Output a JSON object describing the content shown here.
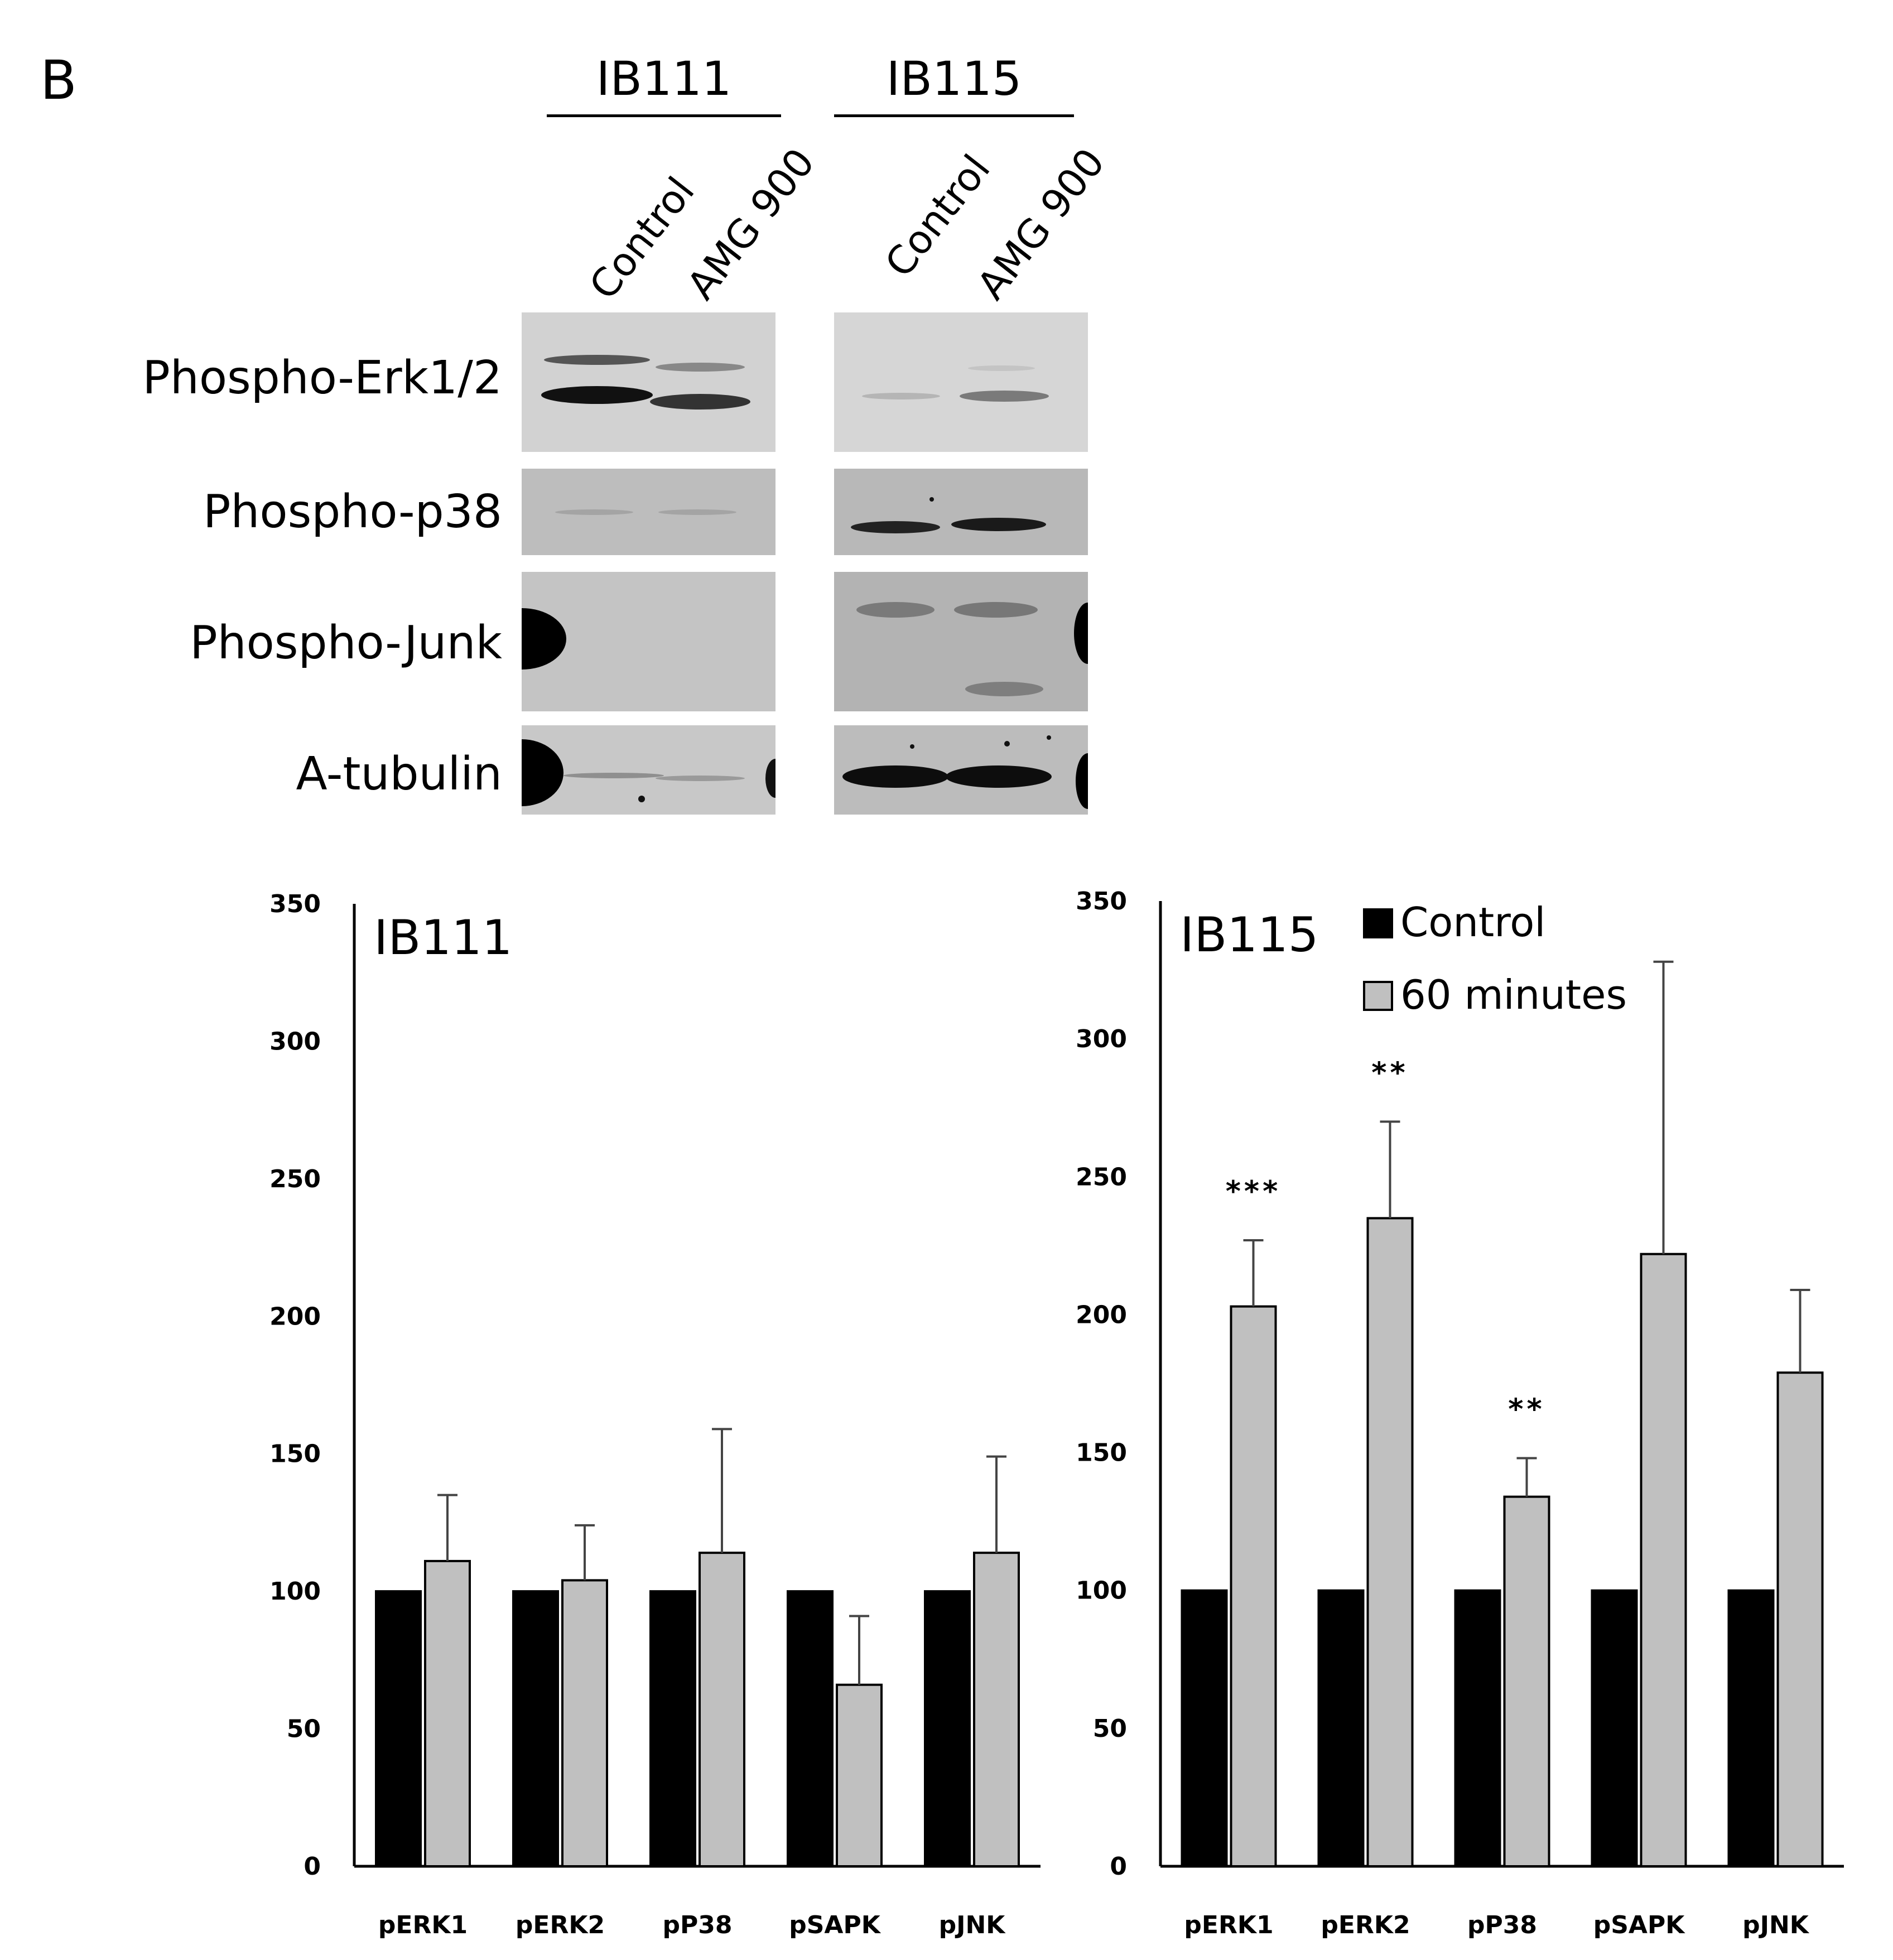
{
  "panel_label": "B",
  "blot": {
    "groups": [
      {
        "name": "IB111",
        "lanes": [
          "Control",
          "AMG 900"
        ]
      },
      {
        "name": "IB115",
        "lanes": [
          "Control",
          "AMG 900"
        ]
      }
    ],
    "rows": [
      "Phospho-Erk1/2",
      "Phospho-p38",
      "Phospho-Junk",
      "A-tubulin"
    ]
  },
  "colors": {
    "control": "#000000",
    "treatment": "#c0c0c0",
    "blot_background": "#cfcfcf",
    "band": "#1a1a1a"
  },
  "chart_data": [
    {
      "type": "bar",
      "title": "IB111",
      "categories": [
        "pERK1",
        "pERK2",
        "pP38",
        "pSAPK",
        "pJNK"
      ],
      "series": [
        {
          "name": "Control",
          "values": [
            100,
            100,
            100,
            100,
            100
          ],
          "errors": [
            0,
            0,
            0,
            0,
            0
          ]
        },
        {
          "name": "60 minutes",
          "values": [
            111,
            104,
            114,
            66,
            114
          ],
          "errors": [
            24,
            20,
            45,
            25,
            35
          ]
        }
      ],
      "annotations": [
        "",
        "",
        "",
        "",
        ""
      ],
      "ylim": [
        0,
        350
      ],
      "yticks": [
        0,
        50,
        100,
        150,
        200,
        250,
        300,
        350
      ],
      "legend": false
    },
    {
      "type": "bar",
      "title": "IB115",
      "categories": [
        "pERK1",
        "pERK2",
        "pP38",
        "pSAPK",
        "pJNK"
      ],
      "series": [
        {
          "name": "Control",
          "values": [
            100,
            100,
            100,
            100,
            100
          ],
          "errors": [
            0,
            0,
            0,
            0,
            0
          ]
        },
        {
          "name": "60 minutes",
          "values": [
            203,
            235,
            134,
            222,
            179
          ],
          "errors": [
            24,
            35,
            14,
            106,
            30
          ]
        }
      ],
      "annotations": [
        "***",
        "**",
        "**",
        "",
        ""
      ],
      "ylim": [
        0,
        350
      ],
      "yticks": [
        0,
        50,
        100,
        150,
        200,
        250,
        300,
        350
      ],
      "legend": true,
      "legend_position": "top-right"
    }
  ]
}
